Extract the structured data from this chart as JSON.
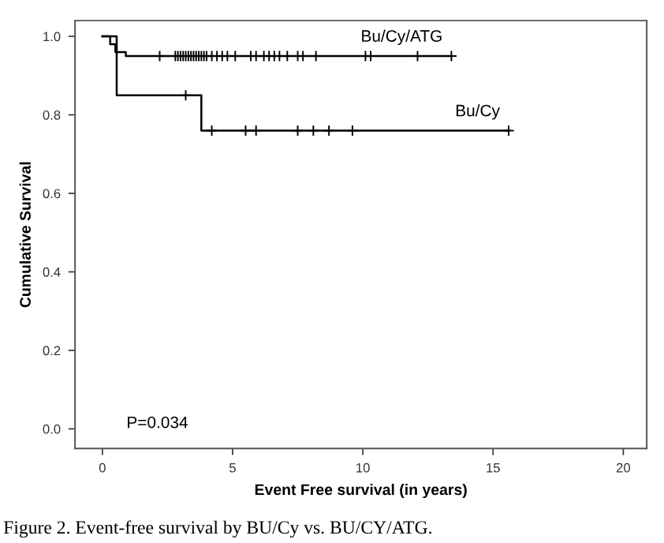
{
  "chart_data": {
    "type": "step",
    "xlabel": "Event Free survival (in years)",
    "ylabel": "Cumulative Survival",
    "xlim": [
      -1.05,
      20.9
    ],
    "ylim": [
      -0.05,
      1.04
    ],
    "xticks": [
      0,
      5,
      10,
      15,
      20
    ],
    "yticks": [
      {
        "value": 0,
        "label": "0.0"
      },
      {
        "value": 0.2,
        "label": "0.2"
      },
      {
        "value": 0.4,
        "label": "0.4"
      },
      {
        "value": 0.6,
        "label": "0.6"
      },
      {
        "value": 0.8,
        "label": "0.8"
      },
      {
        "value": 1,
        "label": "1.0"
      }
    ],
    "grid": false,
    "legend": false,
    "series": [
      {
        "name": "Bu/Cy/ATG",
        "color": "#000000",
        "x": [
          0,
          0.3,
          0.5,
          0.9,
          13.4
        ],
        "values": [
          1,
          0.98,
          0.96,
          0.95,
          0.95
        ]
      },
      {
        "name": "Bu/Cy",
        "color": "#000000",
        "x": [
          0,
          0.55,
          3.8,
          15.6
        ],
        "values": [
          1,
          0.85,
          0.76,
          0.76
        ]
      },
      {
        "type": "scatter",
        "marker": "cross",
        "color": "#000000",
        "x": [
          2.2,
          2.8,
          2.9,
          3.0,
          3.1,
          3.2,
          3.3,
          3.4,
          3.5,
          3.6,
          3.7,
          3.8,
          3.9,
          4.0,
          4.2,
          4.4,
          4.6,
          4.8,
          5.1,
          5.7,
          5.9,
          6.2,
          6.4,
          6.6,
          6.8,
          7.1,
          7.5,
          7.7,
          8.2,
          10.1,
          10.3,
          12.1,
          13.4
        ],
        "values": [
          0.95,
          0.95,
          0.95,
          0.95,
          0.95,
          0.95,
          0.95,
          0.95,
          0.95,
          0.95,
          0.95,
          0.95,
          0.95,
          0.95,
          0.95,
          0.95,
          0.95,
          0.95,
          0.95,
          0.95,
          0.95,
          0.95,
          0.95,
          0.95,
          0.95,
          0.95,
          0.95,
          0.95,
          0.95,
          0.95,
          0.95,
          0.95,
          0.95
        ]
      },
      {
        "type": "scatter",
        "marker": "cross",
        "color": "#000000",
        "x": [
          3.2,
          4.2,
          5.5,
          5.9,
          7.5,
          8.1,
          8.7,
          9.6,
          15.6
        ],
        "values": [
          0.85,
          0.76,
          0.76,
          0.76,
          0.76,
          0.76,
          0.76,
          0.76,
          0.76
        ]
      }
    ],
    "annotations": [
      "P=0.034",
      "Figure 2. Event-free survival by BU/Cy vs. BU/CY/ATG."
    ]
  }
}
